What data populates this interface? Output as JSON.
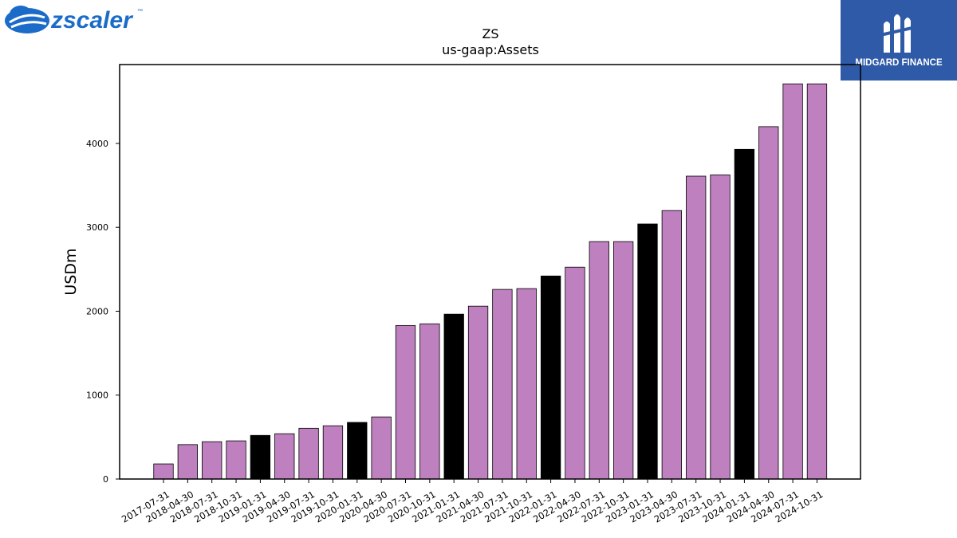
{
  "brand_left": {
    "text": "zscaler",
    "tm": "™"
  },
  "brand_right": {
    "text": "MIDGARD FINANCE"
  },
  "chart_data": {
    "type": "bar",
    "title": "ZS",
    "subtitle": "us-gaap:Assets",
    "xlabel": "",
    "ylabel": "USDm",
    "ylim": [
      0,
      4940
    ],
    "yticks": [
      0,
      1000,
      2000,
      3000,
      4000
    ],
    "grid": false,
    "categories": [
      "2017-07-31",
      "2018-04-30",
      "2018-07-31",
      "2018-10-31",
      "2019-01-31",
      "2019-04-30",
      "2019-07-31",
      "2019-10-31",
      "2020-01-31",
      "2020-04-30",
      "2020-07-31",
      "2020-10-31",
      "2021-01-31",
      "2021-04-30",
      "2021-07-31",
      "2021-10-31",
      "2022-01-31",
      "2022-04-30",
      "2022-07-31",
      "2022-10-31",
      "2023-01-31",
      "2023-04-30",
      "2023-07-31",
      "2023-10-31",
      "2024-01-31",
      "2024-04-30",
      "2024-07-31",
      "2024-10-31"
    ],
    "values": [
      180,
      410,
      445,
      455,
      520,
      540,
      605,
      635,
      675,
      740,
      1830,
      1850,
      1965,
      2060,
      2260,
      2270,
      2420,
      2525,
      2830,
      2830,
      3040,
      3200,
      3610,
      3625,
      3930,
      4200,
      4710,
      4710
    ],
    "highlight": [
      false,
      false,
      false,
      false,
      true,
      false,
      false,
      false,
      true,
      false,
      false,
      false,
      true,
      false,
      false,
      false,
      true,
      false,
      false,
      false,
      true,
      false,
      false,
      false,
      true,
      false,
      false,
      false
    ],
    "colors": {
      "bar": "#bf80bf",
      "highlight": "#000000",
      "edge": "#000000"
    }
  }
}
